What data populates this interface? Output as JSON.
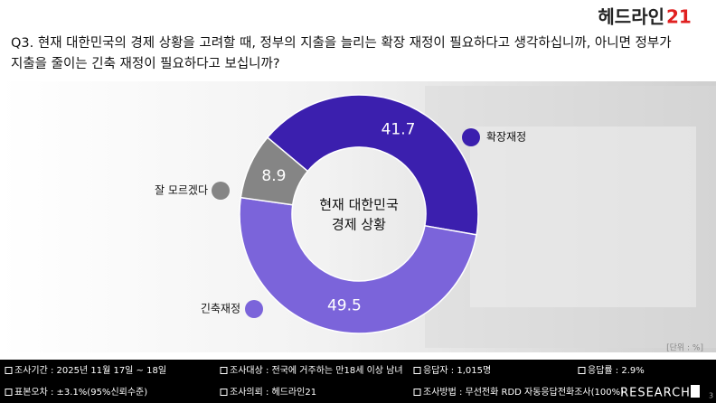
{
  "brand": {
    "name": "헤드라인",
    "number": "21"
  },
  "chart_data": {
    "type": "donut",
    "title": [
      "Q3. 현재 대한민국의 경제 상황을 고려할 때, 정부의 지출을 늘리는 확장 재정이 필요하다고 생각하십니까, 아니면 정부가",
      "지출을 줄이는 긴축 재정이 필요하다고 보십니까?"
    ],
    "center_label": [
      "현재 대한민국",
      "경제 상황"
    ],
    "categories": [
      "확장재정",
      "긴축재정",
      "잘 모르겠다"
    ],
    "values": [
      41.7,
      49.5,
      8.9
    ],
    "colors": [
      "#3b1fae",
      "#7b64da",
      "#858585"
    ],
    "unit_note": "[단위 : %]"
  },
  "footer": {
    "items": [
      "조사기간 : 2025년 11월 17일 ~ 18일",
      "조사대상 : 전국에 거주하는 만18세 이상 남녀",
      "응답자 : 1,015명",
      "응답률 : 2.9%",
      "표본오차 : ±3.1%(95%신뢰수준)",
      "조사의뢰 : 헤드라인21",
      "조사방법 : 무선전화 RDD 자동응답전화조사(100%)"
    ],
    "logo": "RESEARCH",
    "page": "3"
  }
}
